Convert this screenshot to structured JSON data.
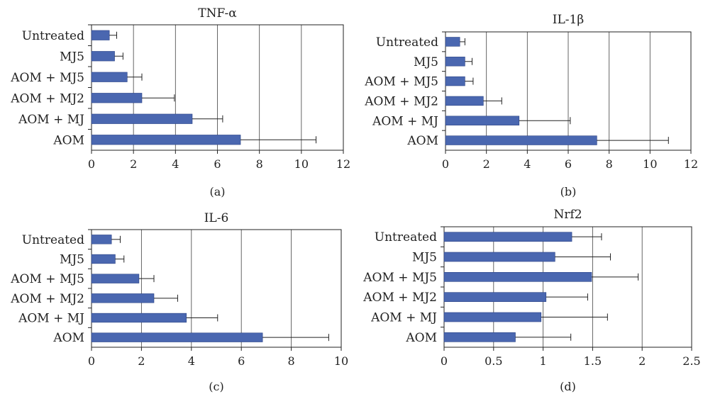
{
  "chart_data": [
    {
      "type": "bar",
      "orientation": "horizontal",
      "title": "TNF-α",
      "panel_label": "(a)",
      "categories": [
        "Untreated",
        "MJ5",
        "AOM + MJ5",
        "AOM + MJ2",
        "AOM + MJ",
        "AOM"
      ],
      "values": [
        0.85,
        1.1,
        1.7,
        2.4,
        4.8,
        7.1
      ],
      "errors": [
        0.35,
        0.4,
        0.7,
        1.55,
        1.45,
        3.6
      ],
      "xlim": [
        0,
        12
      ],
      "xticks": [
        "0",
        "2",
        "4",
        "6",
        "8",
        "10",
        "12"
      ],
      "grid": "vertical"
    },
    {
      "type": "bar",
      "orientation": "horizontal",
      "title": "IL-1β",
      "panel_label": "(b)",
      "categories": [
        "Untreated",
        "MJ5",
        "AOM + MJ5",
        "AOM + MJ2",
        "AOM + MJ",
        "AOM"
      ],
      "values": [
        0.7,
        0.95,
        0.95,
        1.85,
        3.6,
        7.4
      ],
      "errors": [
        0.25,
        0.35,
        0.4,
        0.9,
        2.5,
        3.5
      ],
      "xlim": [
        0,
        12
      ],
      "xticks": [
        "0",
        "2",
        "4",
        "6",
        "8",
        "10",
        "12"
      ],
      "grid": "vertical"
    },
    {
      "type": "bar",
      "orientation": "horizontal",
      "title": "IL-6",
      "panel_label": "(c)",
      "categories": [
        "Untreated",
        "MJ5",
        "AOM + MJ5",
        "AOM + MJ2",
        "AOM + MJ",
        "AOM"
      ],
      "values": [
        0.8,
        0.95,
        1.9,
        2.5,
        3.8,
        6.85
      ],
      "errors": [
        0.35,
        0.35,
        0.6,
        0.95,
        1.25,
        2.65
      ],
      "xlim": [
        0,
        10
      ],
      "xticks": [
        "0",
        "2",
        "4",
        "6",
        "8",
        "10"
      ],
      "grid": "vertical"
    },
    {
      "type": "bar",
      "orientation": "horizontal",
      "title": "Nrf2",
      "panel_label": "(d)",
      "categories": [
        "Untreated",
        "MJ5",
        "AOM + MJ5",
        "AOM + MJ2",
        "AOM + MJ",
        "AOM"
      ],
      "values": [
        1.29,
        1.12,
        1.49,
        1.03,
        0.98,
        0.72
      ],
      "errors": [
        0.3,
        0.56,
        0.47,
        0.42,
        0.67,
        0.56
      ],
      "xlim": [
        0,
        2.5
      ],
      "xticks": [
        "0",
        "0.5",
        "1",
        "1.5",
        "2",
        "2.5"
      ],
      "grid": "vertical"
    }
  ],
  "colors": {
    "bar": "#4a67b0",
    "bar_stroke": "#2c4486",
    "grid": "#555555",
    "axis": "#222222"
  }
}
